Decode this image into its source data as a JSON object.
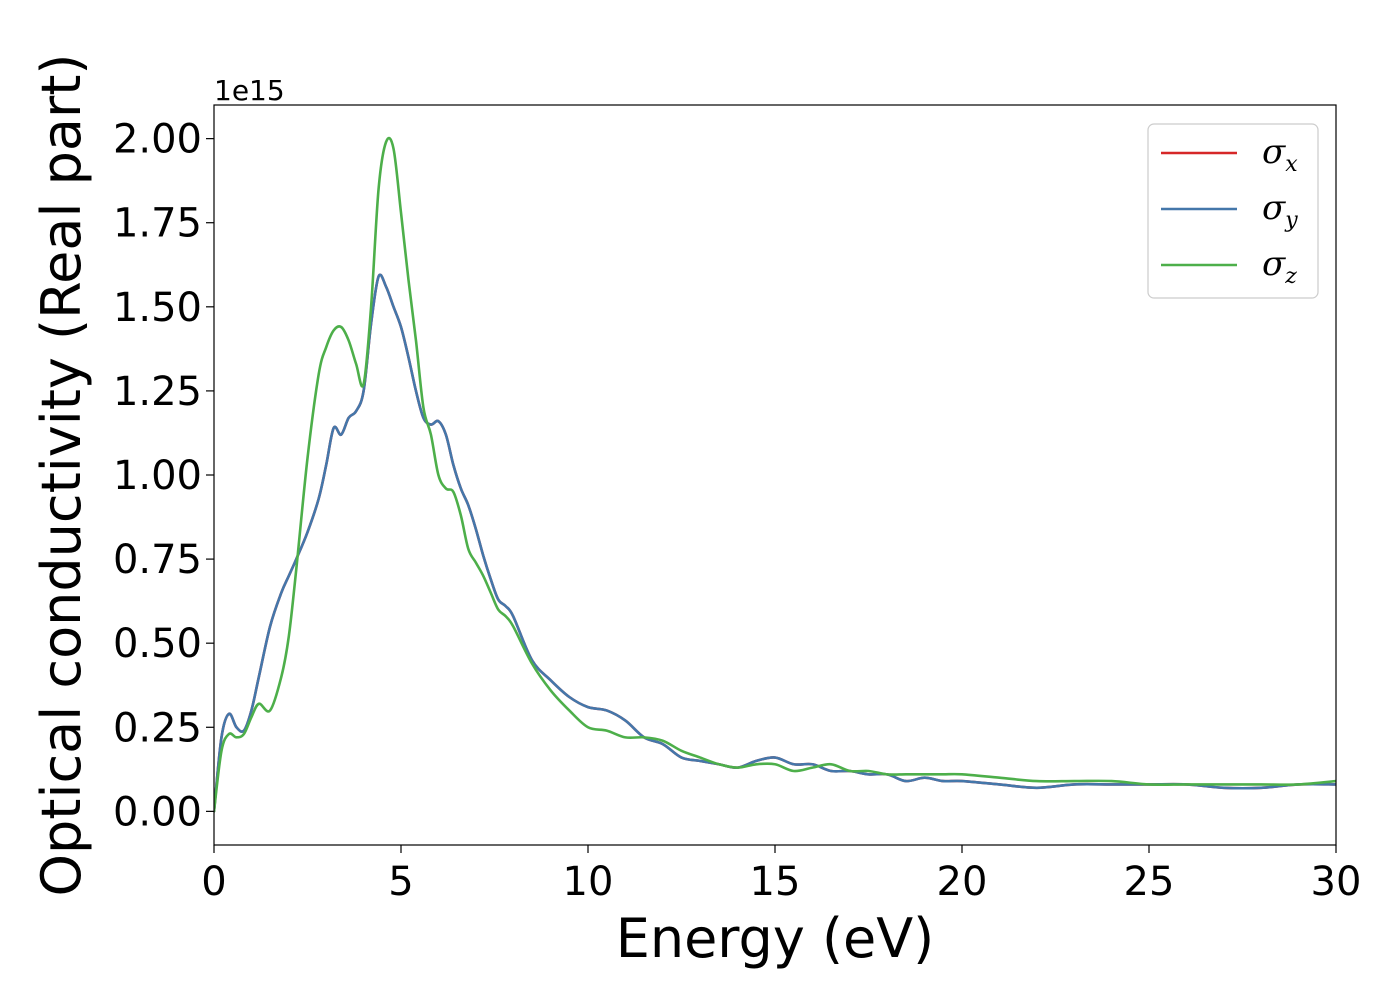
{
  "chart_data": {
    "type": "line",
    "xlabel": "Energy (eV)",
    "ylabel": "Optical conductivity (Real part)",
    "y_offset_label": "1e15",
    "y_scale_factor": 1000000000000000.0,
    "xlim": [
      0,
      30
    ],
    "ylim": [
      -0.1,
      2.1
    ],
    "x_ticks": [
      0,
      5,
      10,
      15,
      20,
      25,
      30
    ],
    "x_tick_labels": [
      "0",
      "5",
      "10",
      "15",
      "20",
      "25",
      "30"
    ],
    "y_ticks": [
      0,
      0.25,
      0.5,
      0.75,
      1.0,
      1.25,
      1.5,
      1.75,
      2.0
    ],
    "y_tick_labels": [
      "0.00",
      "0.25",
      "0.50",
      "0.75",
      "1.00",
      "1.25",
      "1.50",
      "1.75",
      "2.00"
    ],
    "grid": false,
    "legend": {
      "placement": "top-right"
    },
    "series": [
      {
        "name": "σx",
        "symbol": "σ",
        "subscript": "x",
        "color": "#d62728",
        "x": [
          0,
          0.2,
          0.4,
          0.6,
          0.8,
          1.0,
          1.2,
          1.5,
          1.8,
          2.0,
          2.2,
          2.5,
          2.8,
          3.0,
          3.2,
          3.4,
          3.6,
          3.8,
          4.0,
          4.2,
          4.4,
          4.6,
          4.8,
          5.0,
          5.2,
          5.4,
          5.6,
          5.8,
          6.0,
          6.2,
          6.4,
          6.6,
          6.8,
          7.0,
          7.2,
          7.4,
          7.6,
          7.8,
          8.0,
          8.5,
          9.0,
          9.5,
          10.0,
          10.5,
          11.0,
          11.5,
          12.0,
          12.5,
          13.0,
          13.5,
          14.0,
          14.5,
          15.0,
          15.5,
          16.0,
          16.5,
          17.0,
          17.5,
          18.0,
          18.5,
          19.0,
          19.5,
          20.0,
          21.0,
          22.0,
          23.0,
          24.0,
          25.0,
          26.0,
          27.0,
          28.0,
          29.0,
          30.0
        ],
        "values": [
          0.0,
          0.22,
          0.29,
          0.25,
          0.24,
          0.3,
          0.4,
          0.55,
          0.65,
          0.7,
          0.75,
          0.83,
          0.93,
          1.03,
          1.14,
          1.12,
          1.17,
          1.19,
          1.25,
          1.45,
          1.59,
          1.56,
          1.5,
          1.44,
          1.35,
          1.25,
          1.17,
          1.15,
          1.16,
          1.12,
          1.03,
          0.96,
          0.91,
          0.84,
          0.76,
          0.69,
          0.63,
          0.61,
          0.58,
          0.45,
          0.39,
          0.34,
          0.31,
          0.3,
          0.27,
          0.22,
          0.2,
          0.16,
          0.15,
          0.14,
          0.13,
          0.15,
          0.16,
          0.14,
          0.14,
          0.12,
          0.12,
          0.11,
          0.11,
          0.09,
          0.1,
          0.09,
          0.09,
          0.08,
          0.07,
          0.08,
          0.08,
          0.08,
          0.08,
          0.07,
          0.07,
          0.08,
          0.08
        ]
      },
      {
        "name": "σy",
        "symbol": "σ",
        "subscript": "y",
        "color": "#4477aa",
        "x": [
          0,
          0.2,
          0.4,
          0.6,
          0.8,
          1.0,
          1.2,
          1.5,
          1.8,
          2.0,
          2.2,
          2.5,
          2.8,
          3.0,
          3.2,
          3.4,
          3.6,
          3.8,
          4.0,
          4.2,
          4.4,
          4.6,
          4.8,
          5.0,
          5.2,
          5.4,
          5.6,
          5.8,
          6.0,
          6.2,
          6.4,
          6.6,
          6.8,
          7.0,
          7.2,
          7.4,
          7.6,
          7.8,
          8.0,
          8.5,
          9.0,
          9.5,
          10.0,
          10.5,
          11.0,
          11.5,
          12.0,
          12.5,
          13.0,
          13.5,
          14.0,
          14.5,
          15.0,
          15.5,
          16.0,
          16.5,
          17.0,
          17.5,
          18.0,
          18.5,
          19.0,
          19.5,
          20.0,
          21.0,
          22.0,
          23.0,
          24.0,
          25.0,
          26.0,
          27.0,
          28.0,
          29.0,
          30.0
        ],
        "values": [
          0.0,
          0.22,
          0.29,
          0.25,
          0.24,
          0.3,
          0.4,
          0.55,
          0.65,
          0.7,
          0.75,
          0.83,
          0.93,
          1.03,
          1.14,
          1.12,
          1.17,
          1.19,
          1.25,
          1.45,
          1.59,
          1.56,
          1.5,
          1.44,
          1.35,
          1.25,
          1.17,
          1.15,
          1.16,
          1.12,
          1.03,
          0.96,
          0.91,
          0.84,
          0.76,
          0.69,
          0.63,
          0.61,
          0.58,
          0.45,
          0.39,
          0.34,
          0.31,
          0.3,
          0.27,
          0.22,
          0.2,
          0.16,
          0.15,
          0.14,
          0.13,
          0.15,
          0.16,
          0.14,
          0.14,
          0.12,
          0.12,
          0.11,
          0.11,
          0.09,
          0.1,
          0.09,
          0.09,
          0.08,
          0.07,
          0.08,
          0.08,
          0.08,
          0.08,
          0.07,
          0.07,
          0.08,
          0.08
        ]
      },
      {
        "name": "σz",
        "symbol": "σ",
        "subscript": "z",
        "color": "#4daf4a",
        "x": [
          0,
          0.2,
          0.4,
          0.6,
          0.8,
          1.0,
          1.2,
          1.5,
          1.8,
          2.0,
          2.2,
          2.5,
          2.8,
          3.0,
          3.2,
          3.4,
          3.6,
          3.8,
          4.0,
          4.2,
          4.4,
          4.6,
          4.8,
          5.0,
          5.2,
          5.4,
          5.6,
          5.8,
          6.0,
          6.2,
          6.4,
          6.6,
          6.8,
          7.0,
          7.2,
          7.4,
          7.6,
          7.8,
          8.0,
          8.5,
          9.0,
          9.5,
          10.0,
          10.5,
          11.0,
          11.5,
          12.0,
          12.5,
          13.0,
          13.5,
          14.0,
          14.5,
          15.0,
          15.5,
          16.0,
          16.5,
          17.0,
          17.5,
          18.0,
          18.5,
          19.0,
          19.5,
          20.0,
          21.0,
          22.0,
          23.0,
          24.0,
          25.0,
          26.0,
          27.0,
          28.0,
          29.0,
          30.0
        ],
        "values": [
          0.0,
          0.18,
          0.23,
          0.22,
          0.23,
          0.28,
          0.32,
          0.3,
          0.4,
          0.52,
          0.72,
          1.05,
          1.3,
          1.38,
          1.43,
          1.44,
          1.4,
          1.33,
          1.27,
          1.5,
          1.85,
          1.99,
          1.97,
          1.78,
          1.58,
          1.4,
          1.2,
          1.12,
          1.0,
          0.96,
          0.95,
          0.88,
          0.78,
          0.74,
          0.7,
          0.65,
          0.6,
          0.58,
          0.55,
          0.44,
          0.36,
          0.3,
          0.25,
          0.24,
          0.22,
          0.22,
          0.21,
          0.18,
          0.16,
          0.14,
          0.13,
          0.14,
          0.14,
          0.12,
          0.13,
          0.14,
          0.12,
          0.12,
          0.11,
          0.11,
          0.11,
          0.11,
          0.11,
          0.1,
          0.09,
          0.09,
          0.09,
          0.08,
          0.08,
          0.08,
          0.08,
          0.08,
          0.09
        ]
      }
    ]
  }
}
